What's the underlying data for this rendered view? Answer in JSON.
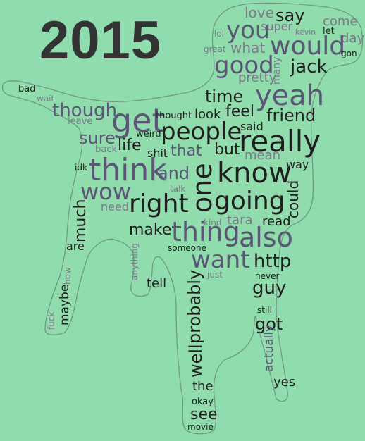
{
  "title": "2015",
  "colors": {
    "background": "#8fdcae",
    "dark_word": "#1f1f1f",
    "purple_word": "#5b5676",
    "grey_word": "#7a7a8a",
    "outline": "#6f9a80"
  },
  "words": [
    {
      "text": "love"
    },
    {
      "text": "say"
    },
    {
      "text": "come"
    },
    {
      "text": "you"
    },
    {
      "text": "super"
    },
    {
      "text": "kevin"
    },
    {
      "text": "let"
    },
    {
      "text": "lol"
    },
    {
      "text": "day"
    },
    {
      "text": "great"
    },
    {
      "text": "what"
    },
    {
      "text": "would"
    },
    {
      "text": "gon"
    },
    {
      "text": "good"
    },
    {
      "text": "many"
    },
    {
      "text": "jack"
    },
    {
      "text": "pretty"
    },
    {
      "text": "bad"
    },
    {
      "text": "wait"
    },
    {
      "text": "time"
    },
    {
      "text": "yeah"
    },
    {
      "text": "though"
    },
    {
      "text": "feel"
    },
    {
      "text": "leave"
    },
    {
      "text": "get"
    },
    {
      "text": "thought"
    },
    {
      "text": "look"
    },
    {
      "text": "friend"
    },
    {
      "text": "said"
    },
    {
      "text": "weird"
    },
    {
      "text": "people"
    },
    {
      "text": "sure"
    },
    {
      "text": "really"
    },
    {
      "text": "back"
    },
    {
      "text": "life"
    },
    {
      "text": "shit"
    },
    {
      "text": "that"
    },
    {
      "text": "but"
    },
    {
      "text": "mean"
    },
    {
      "text": "idk"
    },
    {
      "text": "think"
    },
    {
      "text": "and"
    },
    {
      "text": "know"
    },
    {
      "text": "way"
    },
    {
      "text": "one"
    },
    {
      "text": "talk"
    },
    {
      "text": "wow"
    },
    {
      "text": "could"
    },
    {
      "text": "need"
    },
    {
      "text": "right"
    },
    {
      "text": "going"
    },
    {
      "text": "much"
    },
    {
      "text": "kind"
    },
    {
      "text": "tara"
    },
    {
      "text": "read"
    },
    {
      "text": "make"
    },
    {
      "text": "thing"
    },
    {
      "text": "also"
    },
    {
      "text": "are"
    },
    {
      "text": "someone"
    },
    {
      "text": "anything"
    },
    {
      "text": "want"
    },
    {
      "text": "http"
    },
    {
      "text": "how"
    },
    {
      "text": "just"
    },
    {
      "text": "never"
    },
    {
      "text": "tell"
    },
    {
      "text": "guy"
    },
    {
      "text": "probably"
    },
    {
      "text": "still"
    },
    {
      "text": "maybe"
    },
    {
      "text": "got"
    },
    {
      "text": "fuck"
    },
    {
      "text": "actually"
    },
    {
      "text": "well"
    },
    {
      "text": "yes"
    },
    {
      "text": "the"
    },
    {
      "text": "okay"
    },
    {
      "text": "see"
    },
    {
      "text": "movie"
    }
  ]
}
